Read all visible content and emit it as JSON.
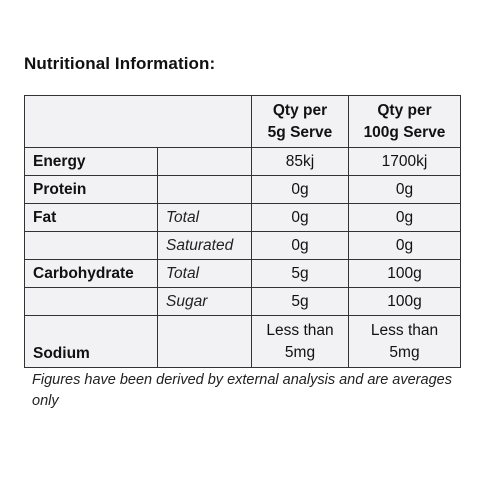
{
  "title": "Nutritional Information:",
  "columns": {
    "col1_line1": "Qty per",
    "col1_line2": "5g Serve",
    "col2_line1": "Qty per",
    "col2_line2": "100g Serve"
  },
  "rows": [
    {
      "nutrient": "Energy",
      "sub": "",
      "per_serve": "85kj",
      "per_100g": "1700kj"
    },
    {
      "nutrient": "Protein",
      "sub": "",
      "per_serve": "0g",
      "per_100g": "0g"
    },
    {
      "nutrient": "Fat",
      "sub": "Total",
      "per_serve": "0g",
      "per_100g": "0g"
    },
    {
      "nutrient": "",
      "sub": "Saturated",
      "per_serve": "0g",
      "per_100g": "0g"
    },
    {
      "nutrient": "Carbohydrate",
      "sub": "Total",
      "per_serve": "5g",
      "per_100g": "100g"
    },
    {
      "nutrient": "",
      "sub": "Sugar",
      "per_serve": "5g",
      "per_100g": "100g"
    }
  ],
  "sodium": {
    "nutrient": "Sodium",
    "per_serve_line1": "Less than",
    "per_serve_line2": "5mg",
    "per_100g_line1": "Less than",
    "per_100g_line2": "5mg"
  },
  "note": "Figures have been derived by external analysis and are averages only"
}
